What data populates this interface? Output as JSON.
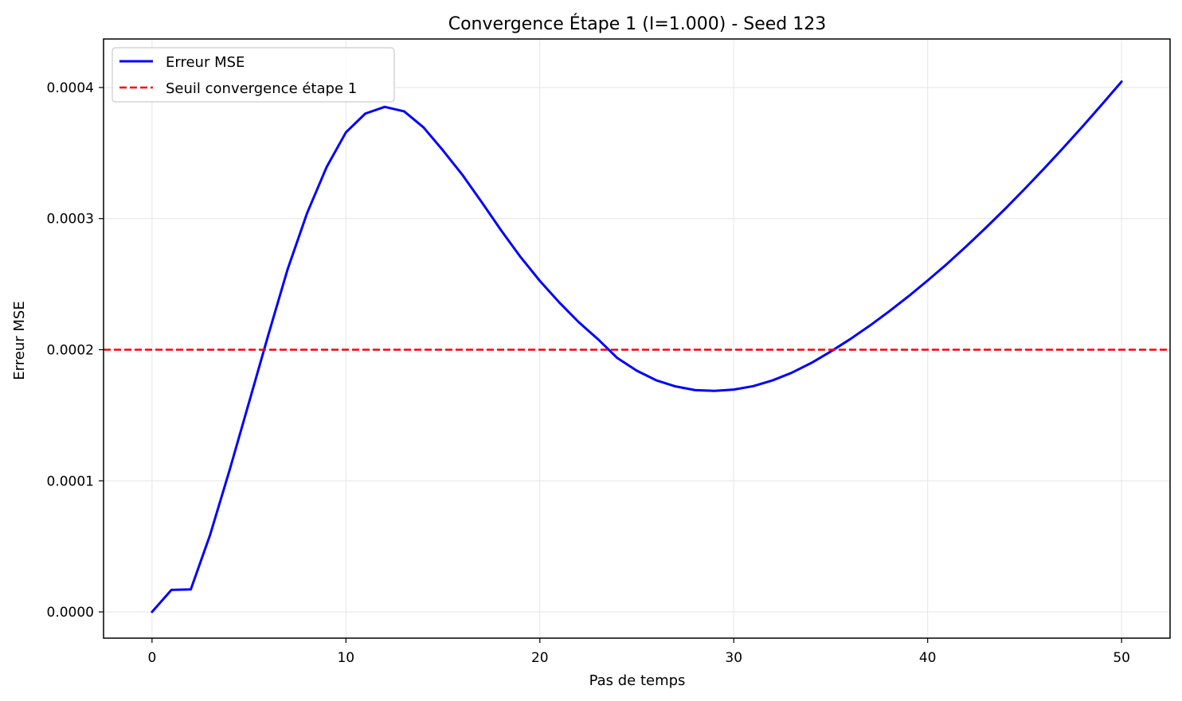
{
  "chart_data": {
    "type": "line",
    "title": "Convergence Étape 1 (I=1.000) - Seed 123",
    "xlabel": "Pas de temps",
    "ylabel": "Erreur MSE",
    "xlim": [
      -2.5,
      52.5
    ],
    "ylim": [
      -2e-05,
      0.000437
    ],
    "xticks": [
      0,
      10,
      20,
      30,
      40,
      50
    ],
    "xtick_labels": [
      "0",
      "10",
      "20",
      "30",
      "40",
      "50"
    ],
    "yticks": [
      0,
      0.0001,
      0.0002,
      0.0003,
      0.0004
    ],
    "ytick_labels": [
      "0.0000",
      "0.0001",
      "0.0002",
      "0.0003",
      "0.0004"
    ],
    "grid": true,
    "legend_position": "top-left",
    "series": [
      {
        "name": "Erreur MSE",
        "color": "#0000ff",
        "style": "solid",
        "x": [
          0,
          1,
          2,
          3,
          4,
          5,
          6,
          7,
          8,
          9,
          10,
          11,
          12,
          13,
          14,
          15,
          16,
          17,
          18,
          19,
          20,
          21,
          22,
          23,
          24,
          25,
          26,
          27,
          28,
          29,
          30,
          31,
          32,
          33,
          34,
          35,
          36,
          37,
          38,
          39,
          40,
          41,
          42,
          43,
          44,
          45,
          46,
          47,
          48,
          49,
          50
        ],
        "y": [
          0.0,
          1.68e-05,
          1.72e-05,
          5.9e-05,
          0.0001082,
          0.0001597,
          0.0002114,
          0.0002617,
          0.0003043,
          0.0003392,
          0.0003658,
          0.0003801,
          0.0003852,
          0.0003818,
          0.0003696,
          0.0003521,
          0.0003335,
          0.0003126,
          0.0002911,
          0.0002708,
          0.0002525,
          0.0002361,
          0.0002211,
          0.000208,
          0.0001936,
          0.000184,
          0.0001767,
          0.000172,
          0.0001692,
          0.0001686,
          0.0001696,
          0.0001722,
          0.0001766,
          0.0001825,
          0.0001899,
          0.0001986,
          0.000208,
          0.0002182,
          0.0002291,
          0.0002406,
          0.0002528,
          0.0002655,
          0.000279,
          0.000293,
          0.0003075,
          0.0003226,
          0.0003381,
          0.0003541,
          0.0003705,
          0.0003873,
          0.0004045
        ]
      },
      {
        "name": "Seuil convergence étape 1",
        "color": "#ff0000",
        "style": "dashed",
        "type": "hline",
        "y": 0.0002
      }
    ]
  }
}
